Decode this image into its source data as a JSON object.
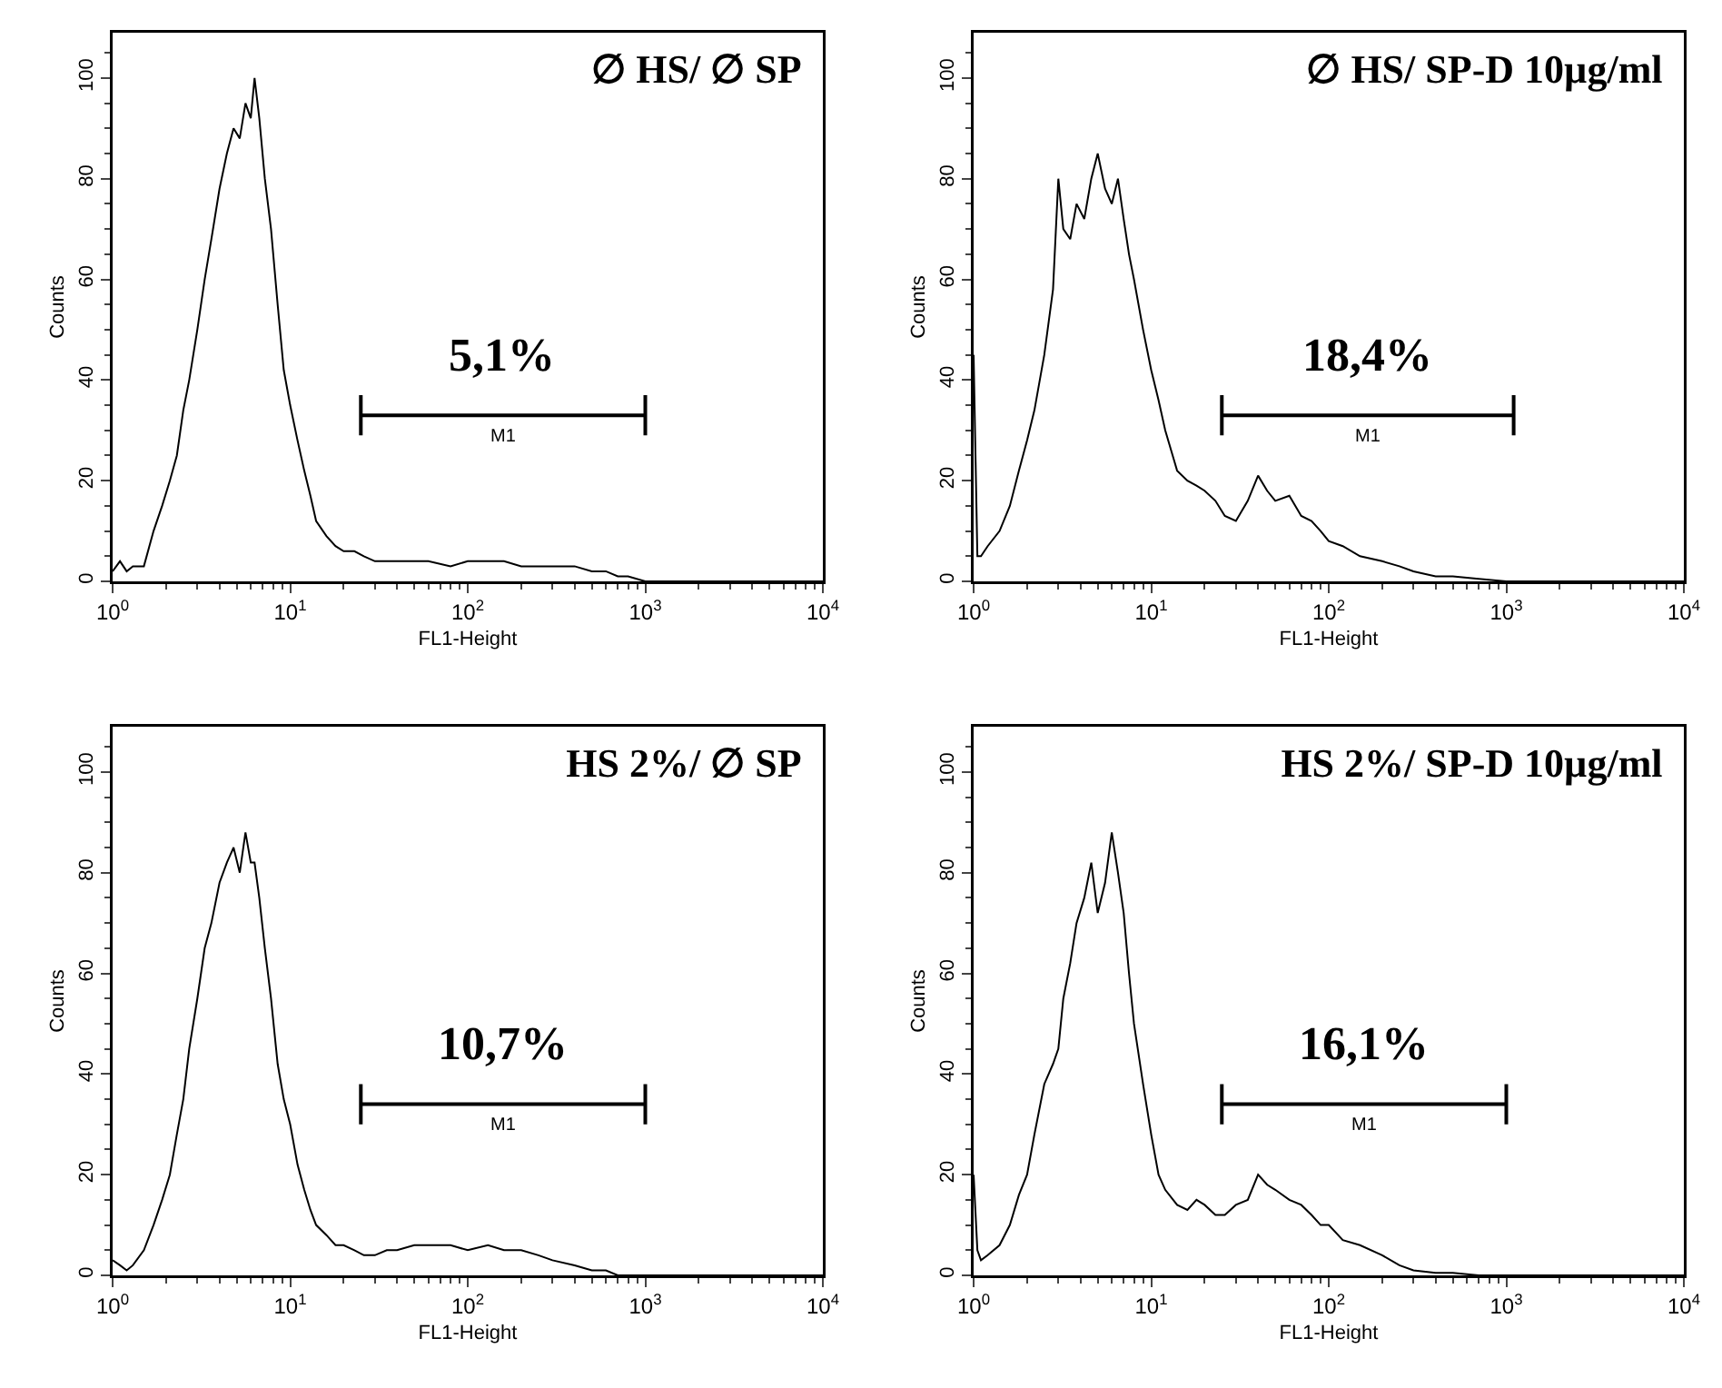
{
  "chart_data": [
    {
      "type": "line",
      "title": "∅ HS/ ∅ SP",
      "xlabel": "FL1-Height",
      "ylabel": "Counts",
      "log": "x",
      "series": [
        {
          "color": "#000000",
          "x": [
            1,
            1.1,
            1.2,
            1.3,
            1.5,
            1.7,
            1.9,
            2.1,
            2.3,
            2.5,
            2.7,
            3,
            3.3,
            3.6,
            4,
            4.4,
            4.8,
            5.2,
            5.6,
            6,
            6.3,
            6.7,
            7.2,
            7.8,
            8.5,
            9.2,
            10,
            11,
            12,
            13,
            14,
            16,
            18,
            20,
            23,
            26,
            30,
            35,
            40,
            50,
            60,
            80,
            100,
            130,
            160,
            200,
            250,
            300,
            400,
            500,
            600,
            700,
            800,
            1000,
            2000,
            10000
          ],
          "values": [
            2,
            4,
            2,
            3,
            3,
            10,
            15,
            20,
            25,
            34,
            40,
            50,
            60,
            68,
            78,
            85,
            90,
            88,
            95,
            92,
            100,
            92,
            80,
            70,
            55,
            42,
            35,
            28,
            22,
            17,
            12,
            9,
            7,
            6,
            6,
            5,
            4,
            4,
            4,
            4,
            4,
            3,
            4,
            4,
            4,
            3,
            3,
            3,
            3,
            2,
            2,
            1,
            1,
            0,
            0,
            0
          ]
        },
        {
          "name": "M1",
          "color": "#000000",
          "x": [
            25,
            25,
            25,
            1000,
            1000,
            1000
          ],
          "values": [
            29,
            37,
            33,
            33,
            37,
            29
          ]
        }
      ],
      "xlim": [
        1,
        10000
      ],
      "ylim": [
        0,
        109
      ],
      "xticks": [
        {
          "value": 1,
          "label": "10$^{0}$"
        },
        {
          "value": 10,
          "label": "10$^{1}$"
        },
        {
          "value": 100,
          "label": "10$^{2}$"
        },
        {
          "value": 1000,
          "label": "10$^{3}$"
        },
        {
          "value": 10000,
          "label": "10$^{4}$"
        }
      ],
      "yticks": [
        0,
        20,
        40,
        60,
        80,
        100
      ],
      "annotations": [
        "5,1%"
      ]
    },
    {
      "type": "line",
      "title": "∅ HS/ SP-D 10µg/ml",
      "xlabel": "FL1-Height",
      "ylabel": "Counts",
      "log": "x",
      "series": [
        {
          "color": "#000000",
          "x": [
            1,
            1.05,
            1.1,
            1.2,
            1.4,
            1.6,
            1.8,
            2,
            2.2,
            2.5,
            2.8,
            3,
            3.2,
            3.5,
            3.8,
            4.2,
            4.6,
            5,
            5.5,
            6,
            6.5,
            7,
            7.5,
            8,
            9,
            10,
            11,
            12,
            14,
            16,
            18,
            20,
            23,
            26,
            30,
            35,
            40,
            45,
            50,
            60,
            70,
            80,
            90,
            100,
            120,
            150,
            200,
            250,
            300,
            400,
            500,
            700,
            1000,
            2000,
            10000
          ],
          "values": [
            45,
            5,
            5,
            7,
            10,
            15,
            22,
            28,
            34,
            45,
            58,
            80,
            70,
            68,
            75,
            72,
            80,
            85,
            78,
            75,
            80,
            72,
            65,
            60,
            50,
            42,
            36,
            30,
            22,
            20,
            19,
            18,
            16,
            13,
            12,
            16,
            21,
            18,
            16,
            17,
            13,
            12,
            10,
            8,
            7,
            5,
            4,
            3,
            2,
            1,
            1,
            0.5,
            0,
            0,
            0
          ]
        },
        {
          "name": "M1",
          "color": "#000000",
          "x": [
            25,
            25,
            25,
            1100,
            1100,
            1100
          ],
          "values": [
            29,
            37,
            33,
            33,
            37,
            29
          ]
        }
      ],
      "xlim": [
        1,
        10000
      ],
      "ylim": [
        0,
        109
      ],
      "xticks": [
        {
          "value": 1,
          "label": "10$^{0}$"
        },
        {
          "value": 10,
          "label": "10$^{1}$"
        },
        {
          "value": 100,
          "label": "10$^{2}$"
        },
        {
          "value": 1000,
          "label": "10$^{3}$"
        },
        {
          "value": 10000,
          "label": "10$^{4}$"
        }
      ],
      "yticks": [
        0,
        20,
        40,
        60,
        80,
        100
      ],
      "annotations": [
        "18,4%"
      ]
    },
    {
      "type": "line",
      "title": "HS 2%/ ∅ SP",
      "xlabel": "FL1-Height",
      "ylabel": "Counts",
      "log": "x",
      "series": [
        {
          "color": "#000000",
          "x": [
            1,
            1.1,
            1.2,
            1.3,
            1.5,
            1.7,
            1.9,
            2.1,
            2.3,
            2.5,
            2.7,
            3,
            3.3,
            3.6,
            4,
            4.4,
            4.8,
            5.2,
            5.6,
            6,
            6.3,
            6.7,
            7.2,
            7.8,
            8.5,
            9.2,
            10,
            11,
            12,
            13,
            14,
            16,
            18,
            20,
            23,
            26,
            30,
            35,
            40,
            50,
            60,
            80,
            100,
            130,
            160,
            200,
            250,
            300,
            400,
            500,
            600,
            700,
            800,
            1000,
            2000,
            10000
          ],
          "values": [
            3,
            2,
            1,
            2,
            5,
            10,
            15,
            20,
            28,
            35,
            45,
            55,
            65,
            70,
            78,
            82,
            85,
            80,
            88,
            82,
            82,
            75,
            65,
            55,
            42,
            35,
            30,
            22,
            17,
            13,
            10,
            8,
            6,
            6,
            5,
            4,
            4,
            5,
            5,
            6,
            6,
            6,
            5,
            6,
            5,
            5,
            4,
            3,
            2,
            1,
            1,
            0,
            0,
            0,
            0,
            0
          ]
        },
        {
          "name": "M1",
          "color": "#000000",
          "x": [
            25,
            25,
            25,
            1000,
            1000,
            1000
          ],
          "values": [
            30,
            38,
            34,
            34,
            38,
            30
          ]
        }
      ],
      "xlim": [
        1,
        10000
      ],
      "ylim": [
        0,
        109
      ],
      "xticks": [
        {
          "value": 1,
          "label": "10$^{0}$"
        },
        {
          "value": 10,
          "label": "10$^{1}$"
        },
        {
          "value": 100,
          "label": "10$^{2}$"
        },
        {
          "value": 1000,
          "label": "10$^{3}$"
        },
        {
          "value": 10000,
          "label": "10$^{4}$"
        }
      ],
      "yticks": [
        0,
        20,
        40,
        60,
        80,
        100
      ],
      "annotations": [
        "10,7%"
      ]
    },
    {
      "type": "line",
      "title": "HS 2%/ SP-D 10µg/ml",
      "xlabel": "FL1-Height",
      "ylabel": "Counts",
      "log": "x",
      "series": [
        {
          "color": "#000000",
          "x": [
            1,
            1.05,
            1.1,
            1.2,
            1.4,
            1.6,
            1.8,
            2,
            2.2,
            2.5,
            2.8,
            3,
            3.2,
            3.5,
            3.8,
            4.2,
            4.6,
            5,
            5.5,
            6,
            6.5,
            7,
            7.5,
            8,
            9,
            10,
            11,
            12,
            14,
            16,
            18,
            20,
            23,
            26,
            30,
            35,
            40,
            45,
            50,
            60,
            70,
            80,
            90,
            100,
            120,
            150,
            200,
            250,
            300,
            400,
            500,
            700,
            1000,
            2000,
            10000
          ],
          "values": [
            20,
            5,
            3,
            4,
            6,
            10,
            16,
            20,
            28,
            38,
            42,
            45,
            55,
            62,
            70,
            75,
            82,
            72,
            78,
            88,
            80,
            72,
            60,
            50,
            38,
            28,
            20,
            17,
            14,
            13,
            15,
            14,
            12,
            12,
            14,
            15,
            20,
            18,
            17,
            15,
            14,
            12,
            10,
            10,
            7,
            6,
            4,
            2,
            1,
            0.5,
            0.5,
            0,
            0,
            0,
            0
          ]
        },
        {
          "name": "M1",
          "color": "#000000",
          "x": [
            25,
            25,
            25,
            1000,
            1000,
            1000
          ],
          "values": [
            30,
            38,
            34,
            34,
            38,
            30
          ]
        }
      ],
      "xlim": [
        1,
        10000
      ],
      "ylim": [
        0,
        109
      ],
      "xticks": [
        {
          "value": 1,
          "label": "10$^{0}$"
        },
        {
          "value": 10,
          "label": "10$^{1}$"
        },
        {
          "value": 100,
          "label": "10$^{2}$"
        },
        {
          "value": 1000,
          "label": "10$^{3}$"
        },
        {
          "value": 10000,
          "label": "10$^{4}$"
        }
      ],
      "yticks": [
        0,
        20,
        40,
        60,
        80,
        100
      ],
      "annotations": [
        "16,1%"
      ]
    }
  ]
}
